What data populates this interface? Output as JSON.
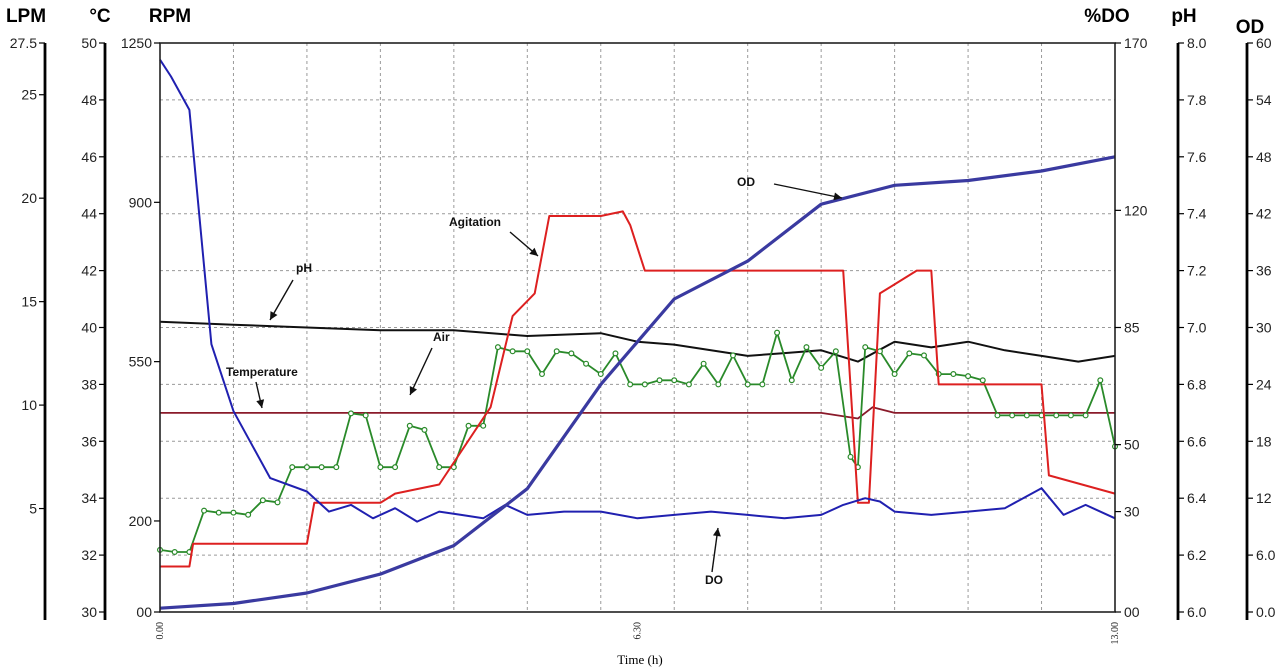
{
  "chart_data": {
    "type": "line",
    "xlabel": "Time (h)",
    "x_ticks": [
      "0.00",
      "6.30",
      "13.00"
    ],
    "xlim": [
      0,
      13
    ],
    "axes": [
      {
        "key": "lpm",
        "label": "LPM",
        "ticks": [
          "27.5",
          "25",
          "20",
          "15",
          "10",
          "5"
        ],
        "range": [
          0,
          27.5
        ]
      },
      {
        "key": "temp",
        "label": "°C",
        "ticks": [
          "50",
          "48",
          "46",
          "44",
          "42",
          "40",
          "38",
          "36",
          "34",
          "32",
          "30"
        ],
        "range": [
          30,
          50
        ]
      },
      {
        "key": "rpm",
        "label": "RPM",
        "ticks": [
          "1250",
          "900",
          "550",
          "200",
          "00"
        ],
        "range": [
          0,
          1250
        ]
      },
      {
        "key": "do",
        "label": "%DO",
        "ticks": [
          "170",
          "120",
          "85",
          "50",
          "30",
          "00"
        ],
        "range": [
          0,
          170
        ]
      },
      {
        "key": "ph",
        "label": "pH",
        "ticks": [
          "8.0",
          "7.8",
          "7.6",
          "7.4",
          "7.2",
          "7.0",
          "6.8",
          "6.6",
          "6.4",
          "6.2",
          "6.0"
        ],
        "range": [
          6.0,
          8.0
        ]
      },
      {
        "key": "od",
        "label": "OD",
        "ticks": [
          "60",
          "54",
          "48",
          "42",
          "36",
          "30",
          "24",
          "18",
          "12",
          "6.0",
          "0.0"
        ],
        "range": [
          0,
          60
        ]
      }
    ],
    "series": [
      {
        "name": "OD",
        "color": "#3a3aa0",
        "width": 3.2,
        "x": [
          0,
          1,
          2,
          3,
          4,
          5,
          6,
          7,
          8,
          9,
          10,
          11,
          12,
          13
        ],
        "y": [
          0.4,
          0.9,
          2.0,
          4.0,
          7.0,
          13.0,
          24.0,
          33.0,
          37.0,
          43.0,
          45.0,
          45.5,
          46.5,
          48.0
        ]
      },
      {
        "name": "Agitation",
        "color": "#dd2020",
        "width": 2,
        "x": [
          0,
          0.4,
          0.45,
          2.0,
          2.1,
          3.0,
          3.2,
          3.8,
          4.5,
          4.8,
          5.1,
          5.3,
          5.6,
          6.0,
          6.3,
          6.4,
          6.6,
          6.8,
          7.5,
          8.0,
          8.5,
          9.3,
          9.5,
          9.65,
          9.8,
          10.3,
          10.5,
          10.6,
          11.0,
          11.2,
          12.0,
          12.1,
          13.0
        ],
        "y": [
          100,
          100,
          150,
          150,
          240,
          240,
          260,
          280,
          450,
          650,
          700,
          870,
          870,
          870,
          880,
          850,
          750,
          750,
          750,
          750,
          750,
          750,
          240,
          240,
          700,
          750,
          750,
          500,
          500,
          500,
          500,
          300,
          260
        ]
      },
      {
        "name": "Air",
        "color": "#2a8a2a",
        "width": 1.8,
        "marker": true,
        "x": [
          0,
          0.2,
          0.4,
          0.6,
          0.8,
          1.0,
          1.2,
          1.4,
          1.6,
          1.8,
          2.0,
          2.2,
          2.4,
          2.6,
          2.8,
          3.0,
          3.2,
          3.4,
          3.6,
          3.8,
          4.0,
          4.2,
          4.4,
          4.6,
          4.8,
          5.0,
          5.2,
          5.4,
          5.6,
          5.8,
          6.0,
          6.2,
          6.4,
          6.6,
          6.8,
          7.0,
          7.2,
          7.4,
          7.6,
          7.8,
          8.0,
          8.2,
          8.4,
          8.6,
          8.8,
          9.0,
          9.2,
          9.4,
          9.5,
          9.6,
          9.8,
          10.0,
          10.2,
          10.4,
          10.6,
          10.8,
          11.0,
          11.2,
          11.4,
          11.6,
          11.8,
          12.0,
          12.2,
          12.4,
          12.6,
          12.8,
          13.0
        ],
        "y": [
          3.0,
          2.9,
          2.9,
          4.9,
          4.8,
          4.8,
          4.7,
          5.4,
          5.3,
          7.0,
          7.0,
          7.0,
          7.0,
          9.6,
          9.5,
          7.0,
          7.0,
          9.0,
          8.8,
          7.0,
          7.0,
          9.0,
          9.0,
          12.8,
          12.6,
          12.6,
          11.5,
          12.6,
          12.5,
          12.0,
          11.5,
          12.5,
          11.0,
          11.0,
          11.2,
          11.2,
          11.0,
          12.0,
          11.0,
          12.4,
          11.0,
          11.0,
          13.5,
          11.2,
          12.8,
          11.8,
          12.6,
          7.5,
          7.0,
          12.8,
          12.6,
          11.5,
          12.5,
          12.4,
          11.5,
          11.5,
          11.4,
          11.2,
          9.5,
          9.5,
          9.5,
          9.5,
          9.5,
          9.5,
          9.5,
          11.2,
          8.0
        ]
      },
      {
        "name": "pH",
        "color": "#111111",
        "width": 2,
        "x": [
          0,
          1.0,
          2.0,
          3.0,
          4.0,
          5.0,
          6.0,
          6.5,
          7.0,
          7.5,
          8.0,
          8.5,
          9.0,
          9.5,
          10.0,
          10.5,
          11.0,
          11.5,
          12.0,
          12.5,
          13.0
        ],
        "y": [
          7.02,
          7.01,
          7.0,
          6.99,
          6.99,
          6.97,
          6.98,
          6.95,
          6.94,
          6.92,
          6.9,
          6.91,
          6.92,
          6.88,
          6.95,
          6.93,
          6.95,
          6.92,
          6.9,
          6.88,
          6.9
        ]
      },
      {
        "name": "Temperature",
        "color": "#8a1a2a",
        "width": 1.8,
        "x": [
          0,
          2,
          4,
          6,
          8,
          9,
          9.5,
          9.7,
          10,
          11,
          12,
          13
        ],
        "y": [
          37.0,
          37.0,
          37.0,
          37.0,
          37.0,
          37.0,
          36.8,
          37.2,
          37.0,
          37.0,
          37.0,
          37.0
        ]
      },
      {
        "name": "DO",
        "color": "#2020b0",
        "width": 2,
        "x": [
          0,
          0.15,
          0.4,
          0.7,
          1.0,
          1.5,
          2.0,
          2.3,
          2.6,
          2.9,
          3.2,
          3.5,
          3.8,
          4.1,
          4.4,
          4.7,
          5.0,
          5.5,
          6.0,
          6.5,
          7.0,
          7.5,
          8.0,
          8.5,
          9.0,
          9.3,
          9.6,
          9.8,
          10.0,
          10.5,
          11.0,
          11.5,
          12.0,
          12.3,
          12.6,
          13.0
        ],
        "y": [
          165,
          160,
          150,
          80,
          60,
          40,
          36,
          30,
          32,
          28,
          31,
          27,
          30,
          29,
          28,
          32,
          29,
          30,
          30,
          28,
          29,
          30,
          29,
          28,
          29,
          32,
          34,
          33,
          30,
          29,
          30,
          31,
          37,
          29,
          32,
          28
        ]
      }
    ],
    "annotations": [
      "OD",
      "Agitation",
      "pH",
      "Air",
      "Temperature",
      "DO"
    ]
  }
}
